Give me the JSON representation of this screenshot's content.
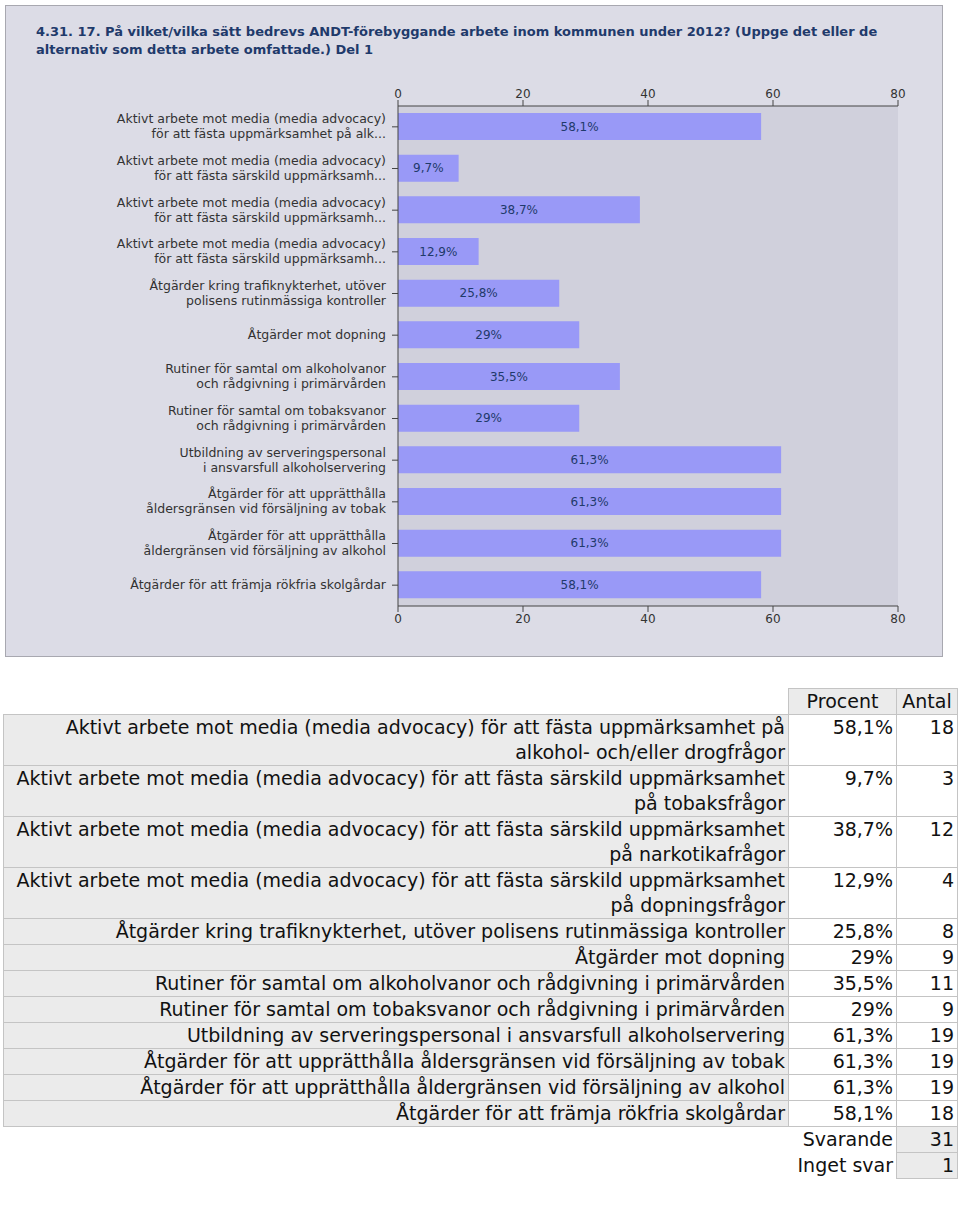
{
  "chart_data": {
    "type": "bar",
    "orientation": "horizontal",
    "title": "4.31. 17. På vilket/vilka sätt bedrevs ANDT-förebyggande arbete inom kommunen under 2012? (Uppge det eller de alternativ som detta arbete omfattade.) Del 1",
    "categories": [
      "Aktivt arbete mot media (media advocacy)\nför att fästa uppmärksamhet på alk...",
      "Aktivt arbete mot media (media advocacy)\nför att fästa särskild uppmärksamh...",
      "Aktivt arbete mot media (media advocacy)\nför att fästa särskild uppmärksamh...",
      "Aktivt arbete mot media (media advocacy)\nför att fästa särskild uppmärksamh...",
      "Åtgärder kring trafiknykterhet, utöver\npolisens rutinmässiga kontroller",
      "Åtgärder mot dopning",
      "Rutiner för samtal om alkoholvanor\noch rådgivning i primärvården",
      "Rutiner för samtal om tobaksvanor\noch rådgivning i primärvården",
      "Utbildning av serveringspersonal\ni ansvarsfull alkoholservering",
      "Åtgärder för att upprätthålla\nåldersgränsen vid försäljning av tobak",
      "Åtgärder för att upprätthålla\nåldergränsen vid försäljning av alkohol",
      "Åtgärder för att främja rökfria skolgårdar"
    ],
    "values": [
      58.1,
      9.7,
      38.7,
      12.9,
      25.8,
      29,
      35.5,
      29,
      61.3,
      61.3,
      61.3,
      58.1
    ],
    "value_labels": [
      "58,1%",
      "9,7%",
      "38,7%",
      "12,9%",
      "25,8%",
      "29%",
      "35,5%",
      "29%",
      "61,3%",
      "61,3%",
      "61,3%",
      "58,1%"
    ],
    "color": "#9999f7",
    "xlim": [
      0,
      80
    ],
    "xticks": [
      0,
      20,
      40,
      60,
      80
    ],
    "data_labels": true
  },
  "table": {
    "header": [
      "Procent",
      "Antal"
    ],
    "rows": [
      {
        "label": "Aktivt arbete mot media (media advocacy) för att fästa uppmärksamhet på alkohol- och/eller drogfrågor",
        "procent": "58,1%",
        "antal": 18
      },
      {
        "label": "Aktivt arbete mot media (media advocacy) för att fästa särskild uppmärksamhet på tobaksfrågor",
        "procent": "9,7%",
        "antal": 3
      },
      {
        "label": "Aktivt arbete mot media (media advocacy) för att fästa särskild uppmärksamhet på narkotikafrågor",
        "procent": "38,7%",
        "antal": 12
      },
      {
        "label": "Aktivt arbete mot media (media advocacy) för att fästa särskild uppmärksamhet på dopningsfrågor",
        "procent": "12,9%",
        "antal": 4
      },
      {
        "label": "Åtgärder kring trafiknykterhet, utöver polisens rutinmässiga kontroller",
        "procent": "25,8%",
        "antal": 8
      },
      {
        "label": "Åtgärder mot dopning",
        "procent": "29%",
        "antal": 9
      },
      {
        "label": "Rutiner för samtal om alkoholvanor och rådgivning i primärvården",
        "procent": "35,5%",
        "antal": 11
      },
      {
        "label": "Rutiner för samtal om tobaksvanor och rådgivning i primärvården",
        "procent": "29%",
        "antal": 9
      },
      {
        "label": "Utbildning av serveringspersonal i ansvarsfull alkoholservering",
        "procent": "61,3%",
        "antal": 19
      },
      {
        "label": "Åtgärder för att upprätthålla åldersgränsen vid försäljning av tobak",
        "procent": "61,3%",
        "antal": 19
      },
      {
        "label": "Åtgärder för att upprätthålla åldergränsen vid försäljning av alkohol",
        "procent": "61,3%",
        "antal": 19
      },
      {
        "label": "Åtgärder för att främja rökfria skolgårdar",
        "procent": "58,1%",
        "antal": 18
      }
    ],
    "footer": [
      {
        "label": "Svarande",
        "antal": 31
      },
      {
        "label": "Inget svar",
        "antal": 1
      }
    ]
  }
}
